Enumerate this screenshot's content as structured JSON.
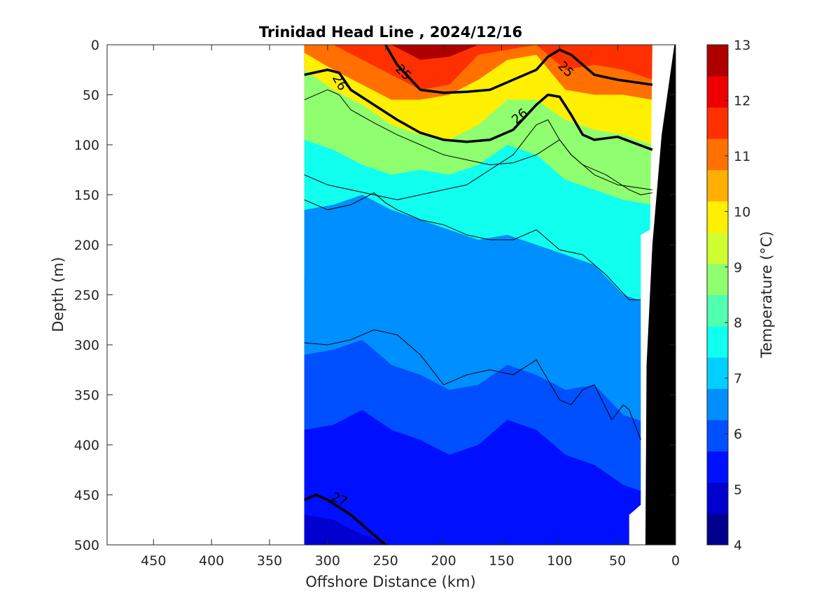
{
  "chart_data": {
    "type": "heatmap",
    "title": "Trinidad Head Line , 2024/12/16",
    "xlabel": "Offshore Distance (km)",
    "ylabel": "Depth (m)",
    "colorbar_label": "Temperature (°C)",
    "x_reversed": true,
    "y_reversed": true,
    "xlim": [
      490,
      0
    ],
    "ylim": [
      0,
      500
    ],
    "x_ticks": [
      450,
      400,
      350,
      300,
      250,
      200,
      150,
      100,
      50,
      0
    ],
    "y_ticks": [
      0,
      50,
      100,
      150,
      200,
      250,
      300,
      350,
      400,
      450,
      500
    ],
    "colorbar_range": [
      4,
      13
    ],
    "colorbar_ticks": [
      4,
      5,
      6,
      7,
      8,
      9,
      10,
      11,
      12,
      13
    ],
    "colorbar_colors": [
      "#00008F",
      "#0000CF",
      "#0010FF",
      "#0050FF",
      "#008FFF",
      "#00CFFF",
      "#10FFEF",
      "#50FFAF",
      "#8FFF70",
      "#CFFF30",
      "#FFEF00",
      "#FFAF00",
      "#FF7000",
      "#FF3000",
      "#EF0000",
      "#AF0000"
    ],
    "data_extent_km": [
      320,
      20
    ],
    "temperature_isotherms": [
      {
        "level": 12,
        "depths": [
          0,
          0,
          0,
          0,
          15,
          12,
          0,
          0,
          0,
          0,
          0,
          0,
          0
        ]
      },
      {
        "level": 11,
        "depths": [
          0,
          0,
          15,
          30,
          45,
          40,
          10,
          5,
          0,
          25,
          20,
          25,
          35
        ]
      },
      {
        "level": 10,
        "depths": [
          8,
          25,
          40,
          55,
          55,
          50,
          35,
          15,
          10,
          45,
          50,
          50,
          55
        ]
      },
      {
        "level": 9,
        "depths": [
          25,
          45,
          60,
          80,
          90,
          95,
          80,
          55,
          55,
          75,
          85,
          90,
          100
        ]
      },
      {
        "level": 8,
        "depths": [
          95,
          105,
          120,
          130,
          125,
          130,
          120,
          100,
          110,
          135,
          145,
          155,
          160
        ]
      },
      {
        "level": 7,
        "depths": [
          165,
          160,
          150,
          165,
          175,
          185,
          195,
          190,
          200,
          210,
          220,
          250,
          260
        ]
      },
      {
        "level": 6.5,
        "depths": [
          230,
          220,
          210,
          235,
          240,
          260,
          265,
          255,
          260,
          275,
          280,
          315,
          320
        ]
      },
      {
        "level": 6,
        "depths": [
          310,
          305,
          295,
          320,
          330,
          345,
          340,
          320,
          330,
          345,
          340,
          370,
          380
        ]
      },
      {
        "level": 5.5,
        "depths": [
          385,
          380,
          365,
          385,
          395,
          410,
          400,
          375,
          385,
          410,
          420,
          440,
          450
        ]
      },
      {
        "level": 5,
        "depths": [
          470,
          475,
          490,
          500,
          500,
          500,
          500,
          500,
          500,
          500,
          500,
          500,
          500
        ]
      },
      {
        "level": 4.5,
        "depths": [
          500,
          500,
          500,
          500,
          500,
          500,
          500,
          500,
          500,
          500,
          500,
          500,
          500
        ]
      }
    ],
    "isotherm_x_km": [
      320,
      295,
      270,
      245,
      220,
      195,
      170,
      145,
      120,
      95,
      70,
      45,
      20
    ],
    "density_contours": [
      {
        "label": "25",
        "emphasis": true,
        "x": [
          250,
          240,
          220,
          200,
          180,
          160,
          140,
          120,
          110,
          100,
          90,
          70,
          50,
          20
        ],
        "depth": [
          0,
          20,
          45,
          48,
          47,
          45,
          35,
          25,
          12,
          5,
          10,
          30,
          35,
          40
        ]
      },
      {
        "label": "26",
        "emphasis": true,
        "x": [
          320,
          300,
          290,
          280,
          260,
          240,
          220,
          200,
          180,
          160,
          140,
          120,
          110,
          100,
          90,
          80,
          70,
          50,
          20
        ],
        "depth": [
          30,
          25,
          28,
          45,
          60,
          75,
          88,
          95,
          97,
          95,
          85,
          60,
          50,
          52,
          70,
          90,
          95,
          92,
          105
        ]
      },
      {
        "label": "27",
        "emphasis": true,
        "x": [
          320,
          310,
          300,
          280,
          265,
          250
        ],
        "depth": [
          455,
          450,
          455,
          470,
          485,
          500
        ]
      },
      {
        "label": "",
        "emphasis": false,
        "x": [
          320,
          300,
          290,
          280,
          260,
          240,
          220,
          200,
          180,
          160,
          140,
          120,
          100,
          90,
          70,
          50,
          20
        ],
        "depth": [
          55,
          45,
          50,
          65,
          78,
          90,
          100,
          110,
          115,
          120,
          118,
          110,
          95,
          110,
          130,
          140,
          145
        ]
      },
      {
        "label": "",
        "emphasis": false,
        "x": [
          320,
          300,
          280,
          260,
          240,
          220,
          200,
          180,
          160,
          140,
          120,
          110,
          100,
          90,
          80,
          60,
          40,
          30,
          20
        ],
        "depth": [
          130,
          140,
          145,
          150,
          155,
          150,
          145,
          140,
          125,
          110,
          80,
          75,
          95,
          110,
          120,
          130,
          145,
          150,
          148
        ]
      },
      {
        "label": "",
        "emphasis": false,
        "x": [
          320,
          300,
          280,
          260,
          250,
          240,
          220,
          200,
          180,
          160,
          140,
          120,
          100,
          80,
          60,
          40,
          30
        ],
        "depth": [
          155,
          165,
          160,
          148,
          158,
          165,
          175,
          180,
          190,
          195,
          195,
          185,
          205,
          210,
          230,
          255,
          255
        ]
      },
      {
        "label": "",
        "emphasis": false,
        "x": [
          320,
          300,
          280,
          260,
          240,
          220,
          200,
          180,
          160,
          140,
          120,
          100,
          90,
          80,
          70,
          55,
          45,
          40,
          30
        ],
        "depth": [
          298,
          300,
          295,
          285,
          290,
          310,
          340,
          330,
          325,
          330,
          315,
          355,
          360,
          345,
          340,
          375,
          360,
          365,
          395
        ]
      }
    ]
  }
}
